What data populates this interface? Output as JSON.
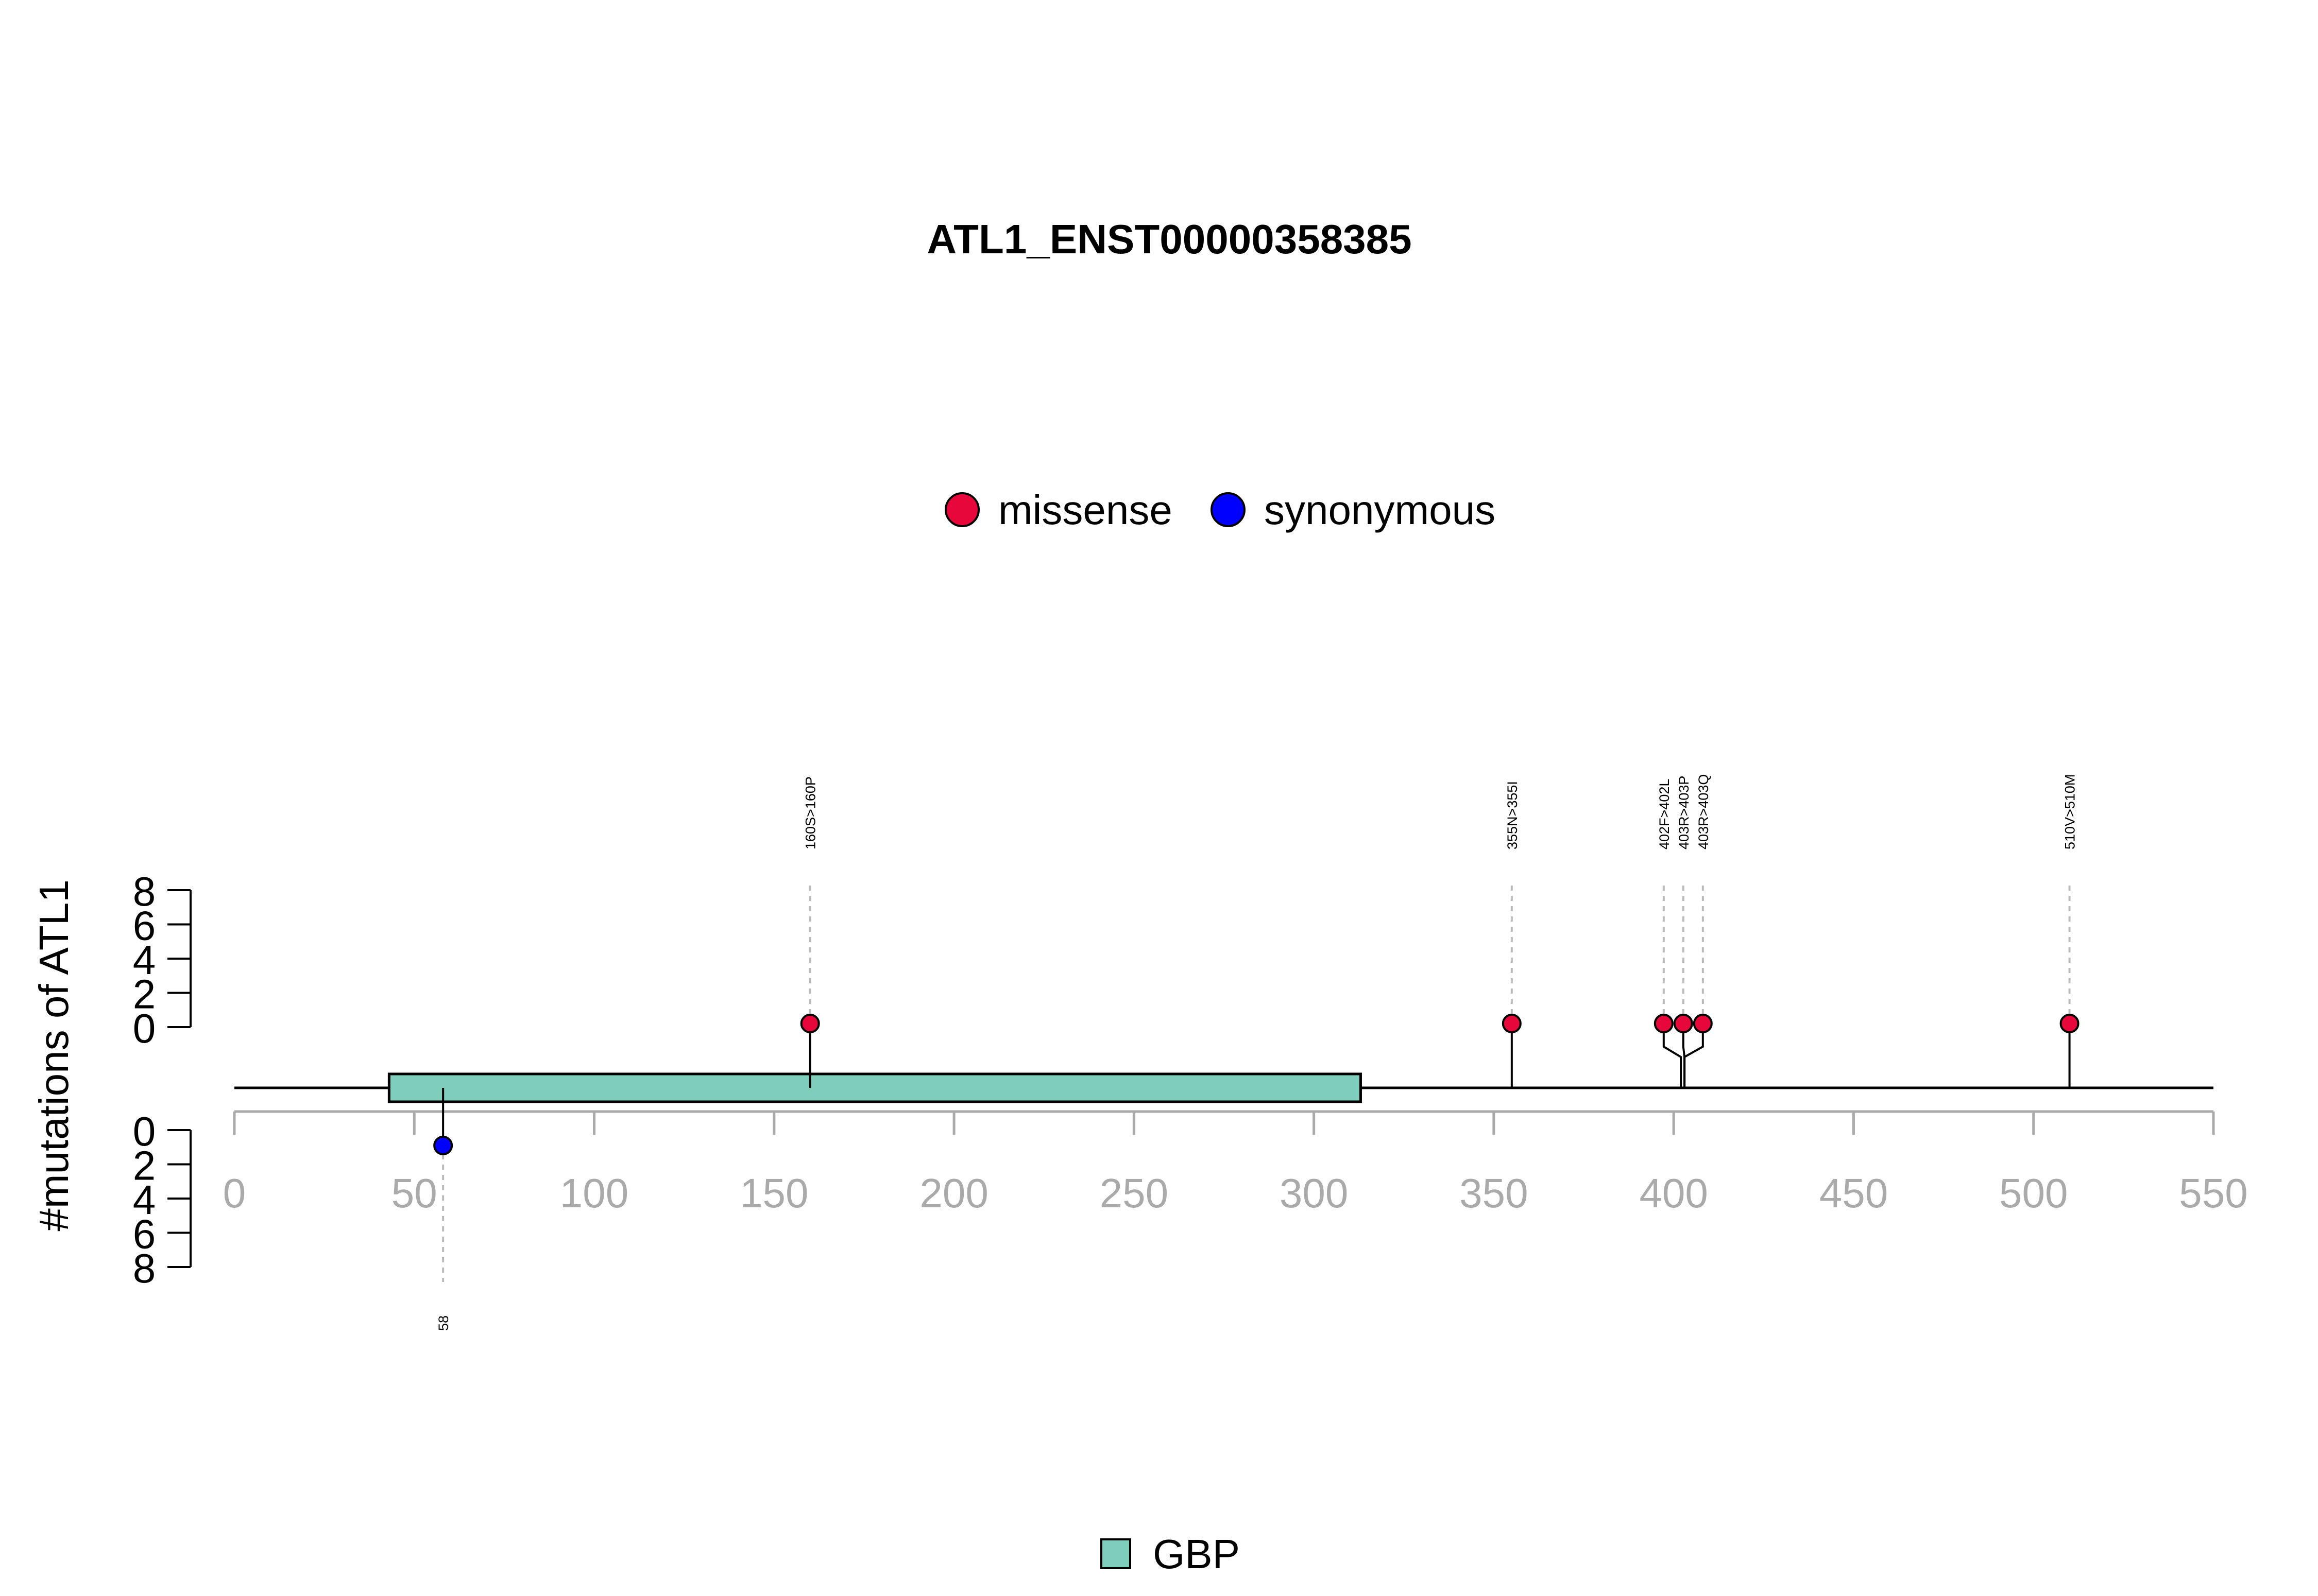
{
  "chart_data": {
    "type": "lollipop",
    "title": "ATL1_ENST00000358385",
    "ylabel": "#mutations of ATL1",
    "xlim": [
      0,
      550
    ],
    "x_ticks": [
      0,
      50,
      100,
      150,
      200,
      250,
      300,
      350,
      400,
      450,
      500,
      550
    ],
    "y_ticks_upper": [
      0,
      2,
      4,
      6,
      8
    ],
    "y_ticks_lower": [
      0,
      2,
      4,
      6,
      8
    ],
    "protein_length": 550,
    "legend_mutation_types": [
      {
        "label": "missense",
        "color": "#e8073a"
      },
      {
        "label": "synonymous",
        "color": "#0000ff"
      }
    ],
    "domains": [
      {
        "name": "GBP",
        "start": 43,
        "end": 313,
        "color": "#7fcdbb"
      }
    ],
    "mutations_upper": [
      {
        "label": "160S>160P",
        "position": 160,
        "count": 1,
        "type": "missense"
      },
      {
        "label": "355N>355I",
        "position": 355,
        "count": 1,
        "type": "missense"
      },
      {
        "label": "402F>402L",
        "position": 402,
        "count": 1,
        "type": "missense"
      },
      {
        "label": "403R>403P",
        "position": 403,
        "count": 1,
        "type": "missense"
      },
      {
        "label": "403R>403Q",
        "position": 403,
        "count": 1,
        "type": "missense"
      },
      {
        "label": "510V>510M",
        "position": 510,
        "count": 1,
        "type": "missense"
      }
    ],
    "mutations_lower": [
      {
        "label": "58",
        "position": 58,
        "count": 1,
        "type": "synonymous"
      }
    ]
  },
  "colors": {
    "axis": "#aaaaaa",
    "backbone": "#000000",
    "guide": "#bbbbbb"
  }
}
